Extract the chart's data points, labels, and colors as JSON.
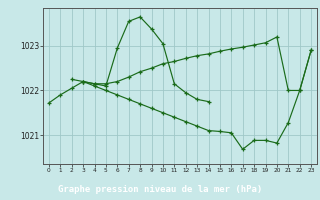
{
  "title": "Graphe pression niveau de la mer (hPa)",
  "bg": "#c8e8e8",
  "grid_color": "#a0c8c8",
  "lc": "#1a6b1a",
  "label_bg": "#2d6b2d",
  "label_fg": "#ffffff",
  "series1_x": [
    0,
    1,
    2,
    3,
    4,
    5,
    6,
    7,
    8,
    9,
    10,
    11,
    12,
    13,
    14
  ],
  "series1_y": [
    1021.72,
    1021.9,
    1022.05,
    1022.2,
    1022.15,
    1022.1,
    1022.95,
    1023.55,
    1023.65,
    1023.38,
    1023.05,
    1022.15,
    1021.95,
    1021.8,
    1021.75
  ],
  "series2_x": [
    2,
    3,
    4,
    5,
    6,
    7,
    8,
    9,
    10,
    11,
    12,
    13,
    14,
    15,
    16,
    17,
    18,
    19,
    20,
    21,
    22,
    23
  ],
  "series2_y": [
    1022.25,
    1022.2,
    1022.15,
    1022.15,
    1022.2,
    1022.3,
    1022.42,
    1022.5,
    1022.6,
    1022.65,
    1022.72,
    1022.78,
    1022.82,
    1022.88,
    1022.93,
    1022.97,
    1023.02,
    1023.07,
    1023.2,
    1022.0,
    1022.0,
    1022.9
  ],
  "series3_x": [
    3,
    4,
    5,
    6,
    7,
    8,
    9,
    10,
    11,
    12,
    13,
    14,
    15,
    16,
    17,
    18,
    19,
    20,
    21,
    22,
    23
  ],
  "series3_y": [
    1022.2,
    1022.1,
    1022.0,
    1021.9,
    1021.8,
    1021.7,
    1021.6,
    1021.5,
    1021.4,
    1021.3,
    1021.2,
    1021.1,
    1021.08,
    1021.05,
    1020.68,
    1020.88,
    1020.88,
    1020.82,
    1021.28,
    1022.0,
    1022.9
  ],
  "yticks": [
    1021,
    1022,
    1023
  ],
  "xticks": [
    0,
    1,
    2,
    3,
    4,
    5,
    6,
    7,
    8,
    9,
    10,
    11,
    12,
    13,
    14,
    15,
    16,
    17,
    18,
    19,
    20,
    21,
    22,
    23
  ],
  "ylim": [
    1020.35,
    1023.85
  ],
  "xlim": [
    -0.5,
    23.5
  ]
}
